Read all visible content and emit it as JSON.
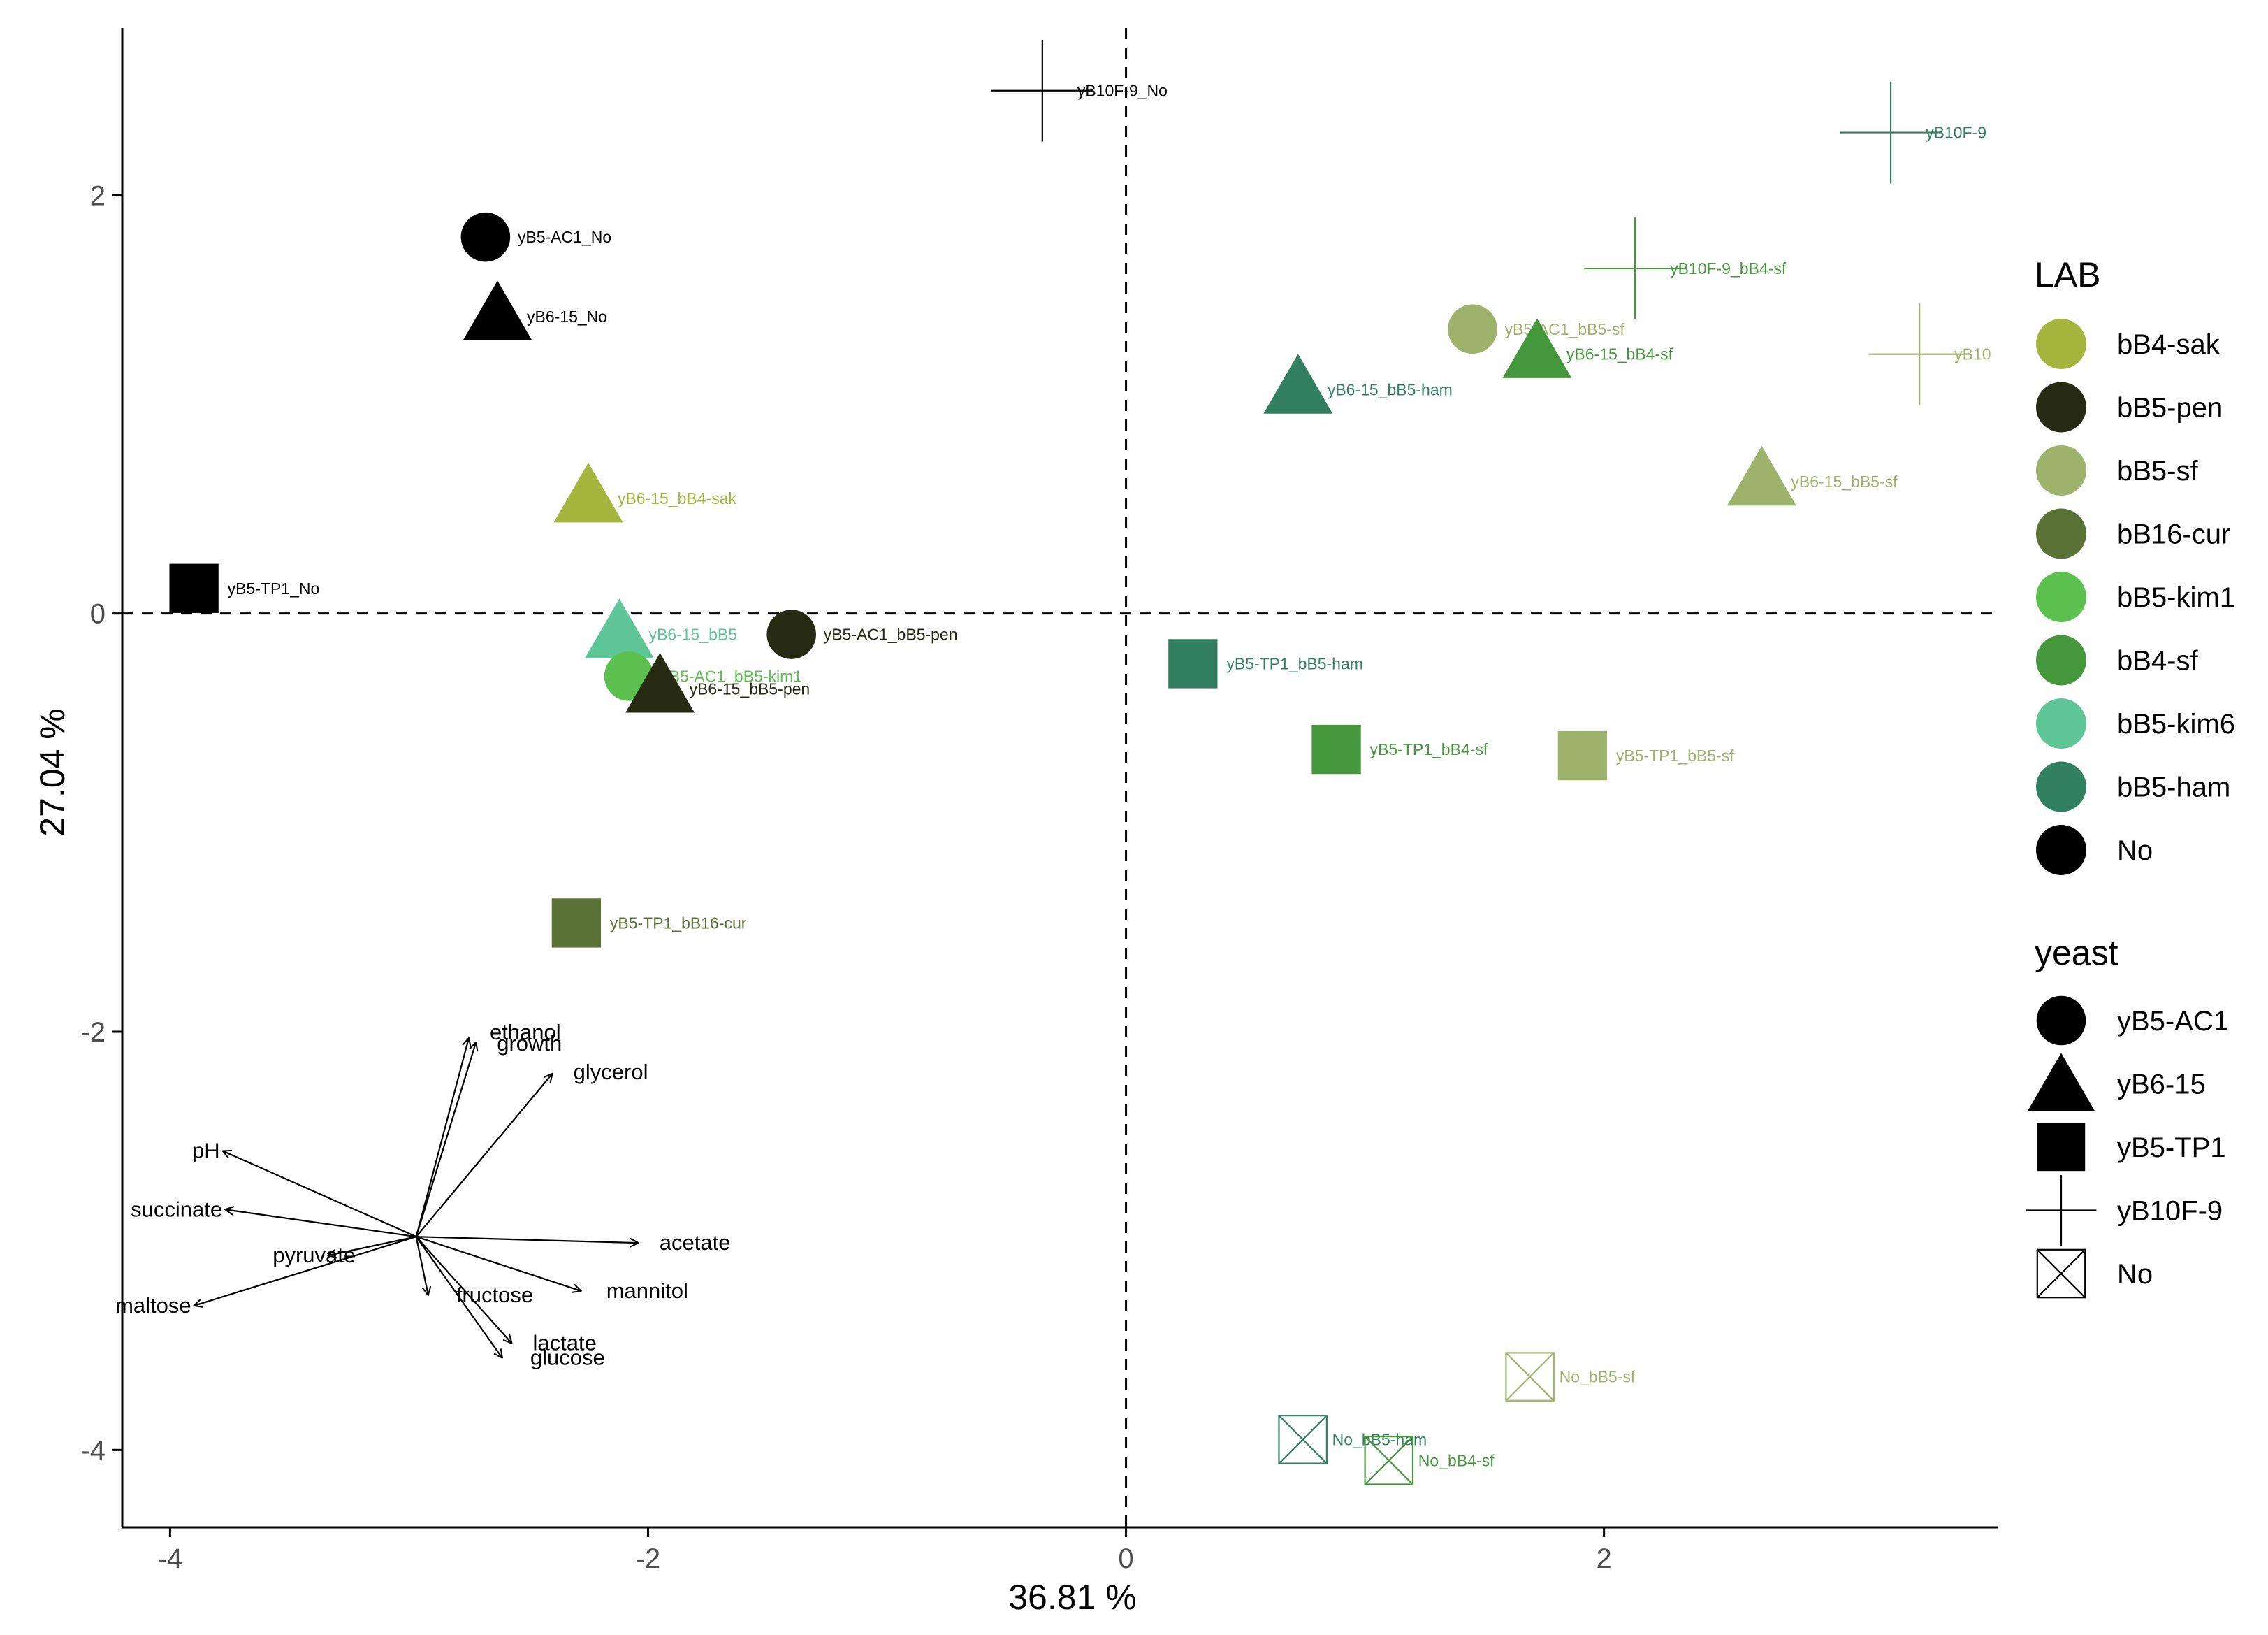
{
  "chart_data": {
    "type": "scatter",
    "subtype": "pca-biplot",
    "xlabel": "36.81 %",
    "ylabel": "27.04 %",
    "xlim": [
      -4.2,
      3.65
    ],
    "ylim": [
      -4.37,
      2.8
    ],
    "xticks": [
      -4,
      -2,
      0,
      2
    ],
    "yticks": [
      -4,
      -2,
      0,
      2
    ],
    "reference_lines": {
      "x": 0,
      "y": 0,
      "style": "dashed"
    },
    "grid": false,
    "colors": {
      "bB4-sak": "#a3b53c",
      "bB5-pen": "#262a12",
      "bB5-sf": "#9db36c",
      "bB16-cur": "#5a7236",
      "bB5-kim1": "#5bc04e",
      "bB4-sf": "#45973c",
      "bB5-kim6": "#5ec596",
      "bB5-ham": "#337f62",
      "No": "#000000"
    },
    "points": [
      {
        "label": "yB10F-9_No",
        "x": -0.35,
        "y": 2.5,
        "yeast": "yB10F-9",
        "lab": "No"
      },
      {
        "label": "yB10F-9",
        "x": 3.2,
        "y": 2.3,
        "yeast": "yB10F-9",
        "lab": "bB5-ham"
      },
      {
        "label": "yB5-AC1_No",
        "x": -2.68,
        "y": 1.8,
        "yeast": "yB5-AC1",
        "lab": "No"
      },
      {
        "label": "yB10F-9_bB4-sf",
        "x": 2.13,
        "y": 1.65,
        "yeast": "yB10F-9",
        "lab": "bB4-sf"
      },
      {
        "label": "yB6-15_No",
        "x": -2.63,
        "y": 1.42,
        "yeast": "yB6-15",
        "lab": "No"
      },
      {
        "label": "yB5-AC1_bB5-sf",
        "x": 1.45,
        "y": 1.36,
        "yeast": "yB5-AC1",
        "lab": "bB5-sf"
      },
      {
        "label": "yB6-15_bB4-sf",
        "x": 1.72,
        "y": 1.24,
        "yeast": "yB6-15",
        "lab": "bB4-sf"
      },
      {
        "label": "yB10",
        "x": 3.32,
        "y": 1.24,
        "yeast": "yB10F-9",
        "lab": "bB5-sf"
      },
      {
        "label": "yB6-15_bB5-ham",
        "x": 0.72,
        "y": 1.07,
        "yeast": "yB6-15",
        "lab": "bB5-ham"
      },
      {
        "label": "yB6-15_bB5-sf",
        "x": 2.66,
        "y": 0.63,
        "yeast": "yB6-15",
        "lab": "bB5-sf"
      },
      {
        "label": "yB6-15_bB4-sak",
        "x": -2.25,
        "y": 0.55,
        "yeast": "yB6-15",
        "lab": "bB4-sak"
      },
      {
        "label": "yB5-TP1_No",
        "x": -3.9,
        "y": 0.12,
        "yeast": "yB5-TP1",
        "lab": "No"
      },
      {
        "label": "yB5-AC1_bB5-pen",
        "x": -1.4,
        "y": -0.1,
        "yeast": "yB5-AC1",
        "lab": "bB5-pen"
      },
      {
        "label": "yB6-15_bB5",
        "x": -2.12,
        "y": -0.1,
        "yeast": "yB6-15",
        "lab": "bB5-kim6"
      },
      {
        "label": "yB5-TP1_bB5-ham",
        "x": 0.28,
        "y": -0.24,
        "yeast": "yB5-TP1",
        "lab": "bB5-ham"
      },
      {
        "label": "yB5-AC1_bB5-kim1",
        "x": -2.08,
        "y": -0.3,
        "yeast": "yB5-AC1",
        "lab": "bB5-kim1"
      },
      {
        "label": "yB6-15_bB5-pen",
        "x": -1.95,
        "y": -0.36,
        "yeast": "yB6-15",
        "lab": "bB5-pen"
      },
      {
        "label": "yB5-TP1_bB4-sf",
        "x": 0.88,
        "y": -0.65,
        "yeast": "yB5-TP1",
        "lab": "bB4-sf"
      },
      {
        "label": "yB5-TP1_bB5-sf",
        "x": 1.91,
        "y": -0.68,
        "yeast": "yB5-TP1",
        "lab": "bB5-sf"
      },
      {
        "label": "yB5-TP1_bB16-cur",
        "x": -2.3,
        "y": -1.48,
        "yeast": "yB5-TP1",
        "lab": "bB16-cur"
      },
      {
        "label": "No_bB5-sf",
        "x": 1.69,
        "y": -3.65,
        "yeast": "No",
        "lab": "bB5-sf"
      },
      {
        "label": "No_bB5-ham",
        "x": 0.74,
        "y": -3.95,
        "yeast": "No",
        "lab": "bB5-ham"
      },
      {
        "label": "No_bB4-sf",
        "x": 1.1,
        "y": -4.05,
        "yeast": "No",
        "lab": "bB4-sf"
      }
    ],
    "vectors": {
      "origin": [
        -2.97,
        -2.98
      ],
      "arrows": [
        {
          "name": "ethanol",
          "x": -2.75,
          "y": -2.03
        },
        {
          "name": "growth",
          "x": -2.72,
          "y": -2.05
        },
        {
          "name": "glycerol",
          "x": -2.4,
          "y": -2.2
        },
        {
          "name": "pH",
          "x": -3.78,
          "y": -2.57
        },
        {
          "name": "succinate",
          "x": -3.77,
          "y": -2.85
        },
        {
          "name": "pyruvate",
          "x": -3.34,
          "y": -3.07
        },
        {
          "name": "maltose",
          "x": -3.9,
          "y": -3.31
        },
        {
          "name": "acetate",
          "x": -2.04,
          "y": -3.01
        },
        {
          "name": "fructose",
          "x": -2.92,
          "y": -3.26
        },
        {
          "name": "mannitol",
          "x": -2.28,
          "y": -3.24
        },
        {
          "name": "lactate",
          "x": -2.57,
          "y": -3.49
        },
        {
          "name": "glucose",
          "x": -2.61,
          "y": -3.56
        }
      ]
    },
    "legend": {
      "position": "right",
      "lab_title": "LAB",
      "lab_entries": [
        "bB4-sak",
        "bB5-pen",
        "bB5-sf",
        "bB16-cur",
        "bB5-kim1",
        "bB4-sf",
        "bB5-kim6",
        "bB5-ham",
        "No"
      ],
      "yeast_title": "yeast",
      "yeast_entries": [
        {
          "label": "yB5-AC1",
          "shape": "circle"
        },
        {
          "label": "yB6-15",
          "shape": "triangle"
        },
        {
          "label": "yB5-TP1",
          "shape": "square"
        },
        {
          "label": "yB10F-9",
          "shape": "plus"
        },
        {
          "label": "No",
          "shape": "boxed-x"
        }
      ]
    }
  }
}
